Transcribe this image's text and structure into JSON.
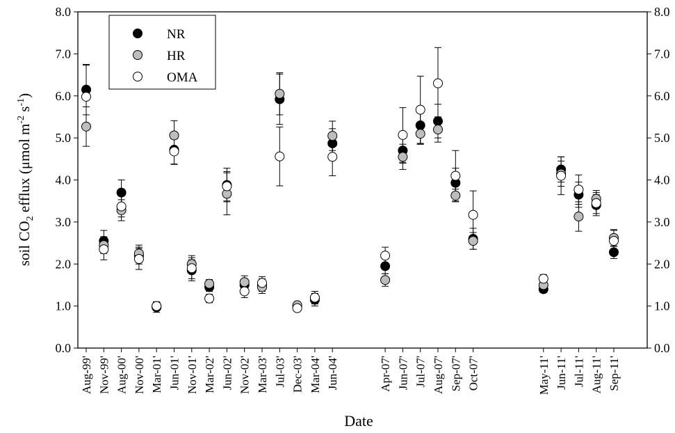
{
  "chart_data": {
    "type": "scatter",
    "xlabel": "Date",
    "ylabel_main": "soil CO",
    "ylabel_sub": "2",
    "ylabel_rest": " efflux (μmol m",
    "ylabel_sup1": "-2",
    "ylabel_mid": " s",
    "ylabel_sup2": "-1",
    "ylabel_end": ")",
    "ylim": [
      0,
      8
    ],
    "yticks": [
      "0.0",
      "1.0",
      "2.0",
      "3.0",
      "4.0",
      "5.0",
      "6.0",
      "7.0",
      "8.0"
    ],
    "legend_position": "top-left",
    "categories": [
      "Aug-99'",
      "Nov-99'",
      "Aug-00'",
      "Nov-00'",
      "Mar-01'",
      "Jun-01'",
      "Nov-01'",
      "Mar-02'",
      "Jun-02'",
      "Nov-02'",
      "Mar-03'",
      "Jul-03'",
      "Dec-03'",
      "Mar-04'",
      "Jun-04'",
      "Apr-07'",
      "Jun-07'",
      "Jul-07'",
      "Aug-07'",
      "Sep-07'",
      "Oct-07'",
      "May-11'",
      "Jun-11'",
      "Jul-11'",
      "Aug-11'",
      "Sep-11'"
    ],
    "series": [
      {
        "name": "NR",
        "color": "#000000",
        "values": [
          6.15,
          2.55,
          3.7,
          2.2,
          0.97,
          4.72,
          1.85,
          1.45,
          3.88,
          1.5,
          1.5,
          5.92,
          1.0,
          1.15,
          4.87,
          1.95,
          4.7,
          5.3,
          5.4,
          3.93,
          2.6,
          1.4,
          4.25,
          3.65,
          3.4,
          2.28
        ],
        "err": [
          0.6,
          0.25,
          0.3,
          0.2,
          0.12,
          0.35,
          0.25,
          0.1,
          0.4,
          0.15,
          0.15,
          0.6,
          0.07,
          0.15,
          0.35,
          0.18,
          0.3,
          0.45,
          0.4,
          0.35,
          0.25,
          0.08,
          0.3,
          0.3,
          0.25,
          0.15
        ]
      },
      {
        "name": "HR",
        "color": "#bdbdbd",
        "values": [
          5.27,
          2.45,
          3.28,
          2.25,
          1.0,
          5.06,
          2.0,
          1.53,
          3.67,
          1.57,
          1.45,
          6.05,
          1.02,
          1.2,
          5.05,
          1.62,
          4.55,
          5.1,
          5.2,
          3.63,
          2.55,
          1.5,
          4.15,
          3.13,
          3.55,
          2.62
        ],
        "err": [
          0.47,
          0.2,
          0.25,
          0.2,
          0.1,
          0.35,
          0.2,
          0.1,
          0.5,
          0.15,
          0.15,
          0.5,
          0.07,
          0.15,
          0.35,
          0.15,
          0.3,
          0.25,
          0.3,
          0.15,
          0.2,
          0.1,
          0.3,
          0.35,
          0.2,
          0.2
        ]
      },
      {
        "name": "OMA",
        "color": "#ffffff",
        "values": [
          5.98,
          2.35,
          3.37,
          2.12,
          1.0,
          4.68,
          1.9,
          1.18,
          3.85,
          1.35,
          1.55,
          4.56,
          0.95,
          1.2,
          4.55,
          2.2,
          5.07,
          5.67,
          6.3,
          4.1,
          3.17,
          1.65,
          4.1,
          3.77,
          3.45,
          2.55
        ],
        "err": [
          0.75,
          0.25,
          0.25,
          0.25,
          0.1,
          0.3,
          0.25,
          0.1,
          0.35,
          0.15,
          0.15,
          0.7,
          0.07,
          0.15,
          0.45,
          0.2,
          0.65,
          0.8,
          0.85,
          0.6,
          0.57,
          0.1,
          0.45,
          0.35,
          0.25,
          0.25
        ]
      }
    ]
  }
}
